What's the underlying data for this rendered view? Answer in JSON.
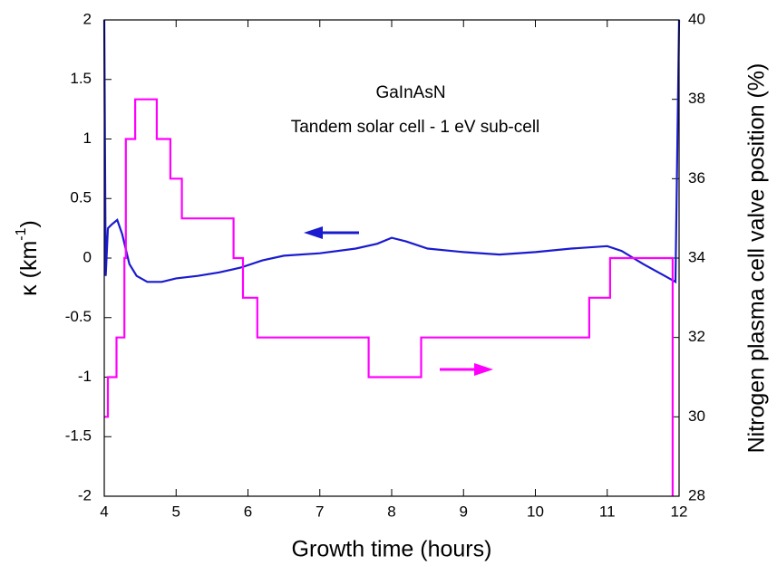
{
  "chart_data": {
    "type": "line",
    "x_label": "Growth time (hours)",
    "y_label": {
      "main": "κ (km",
      "sup": "-1",
      "end": ")"
    },
    "y2_label": "Nitrogen plasma cell valve position (%)",
    "annotations": [
      "GaInAsN",
      "Tandem solar cell - 1 eV sub-cell"
    ],
    "xlim": [
      4,
      12
    ],
    "xticks": [
      4,
      5,
      6,
      7,
      8,
      9,
      10,
      11,
      12
    ],
    "ylim": [
      -2,
      2
    ],
    "yticks": [
      -2,
      -1.5,
      -1,
      -0.5,
      0,
      0.5,
      1,
      1.5,
      2
    ],
    "y2lim": [
      28,
      40
    ],
    "y2ticks": [
      28,
      30,
      32,
      34,
      36,
      38,
      40
    ],
    "series": [
      {
        "color": "#1a1acf",
        "x": [
          4.0,
          4.02,
          4.05,
          4.1,
          4.18,
          4.25,
          4.35,
          4.45,
          4.6,
          4.8,
          5.0,
          5.3,
          5.6,
          5.9,
          6.2,
          6.5,
          7.0,
          7.5,
          7.8,
          8.0,
          8.2,
          8.5,
          9.0,
          9.5,
          10.0,
          10.5,
          11.0,
          11.2,
          11.5,
          11.8,
          11.95,
          12.0
        ],
        "values": [
          2,
          -0.15,
          0.25,
          0.28,
          0.32,
          0.2,
          -0.05,
          -0.15,
          -0.2,
          -0.2,
          -0.17,
          -0.15,
          -0.12,
          -0.08,
          -0.02,
          0.02,
          0.04,
          0.08,
          0.12,
          0.17,
          0.14,
          0.08,
          0.05,
          0.03,
          0.05,
          0.08,
          0.1,
          0.06,
          -0.05,
          -0.15,
          -0.2,
          2
        ]
      },
      {
        "color": "#ff00ff",
        "axis": "y2",
        "x": [
          4.0,
          4.05,
          4.05,
          4.17,
          4.17,
          4.28,
          4.28,
          4.3,
          4.3,
          4.43,
          4.43,
          4.73,
          4.73,
          4.92,
          4.92,
          5.08,
          5.08,
          5.8,
          5.8,
          5.93,
          5.93,
          6.13,
          6.13,
          7.68,
          7.68,
          8.41,
          8.41,
          10.75,
          10.75,
          11.04,
          11.04,
          11.91,
          11.91
        ],
        "values": [
          30,
          30,
          31,
          31,
          32,
          32,
          34,
          34,
          37,
          37,
          38,
          38,
          37,
          37,
          36,
          36,
          35,
          35,
          34,
          34,
          33,
          33,
          32,
          32,
          31,
          31,
          32,
          32,
          33,
          33,
          34,
          34,
          28
        ]
      }
    ]
  }
}
